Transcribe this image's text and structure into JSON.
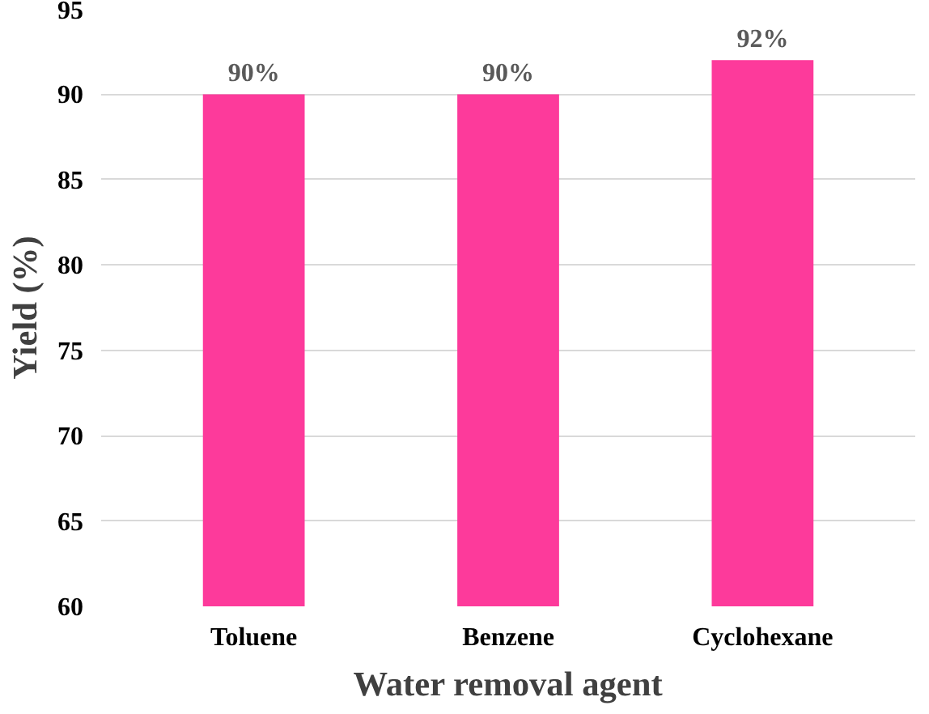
{
  "chart_data": {
    "type": "bar",
    "xlabel": "Water removal agent",
    "ylabel": "Yield (%)",
    "categories": [
      "Toluene",
      "Benzene",
      "Cyclohexane"
    ],
    "values": [
      90,
      90,
      92
    ],
    "value_labels": [
      "90%",
      "90%",
      "92%"
    ],
    "color": "#fd3a9b",
    "ylim": [
      60,
      95
    ],
    "yticks": [
      60,
      65,
      70,
      75,
      80,
      85,
      90,
      95
    ],
    "grid": "y"
  }
}
